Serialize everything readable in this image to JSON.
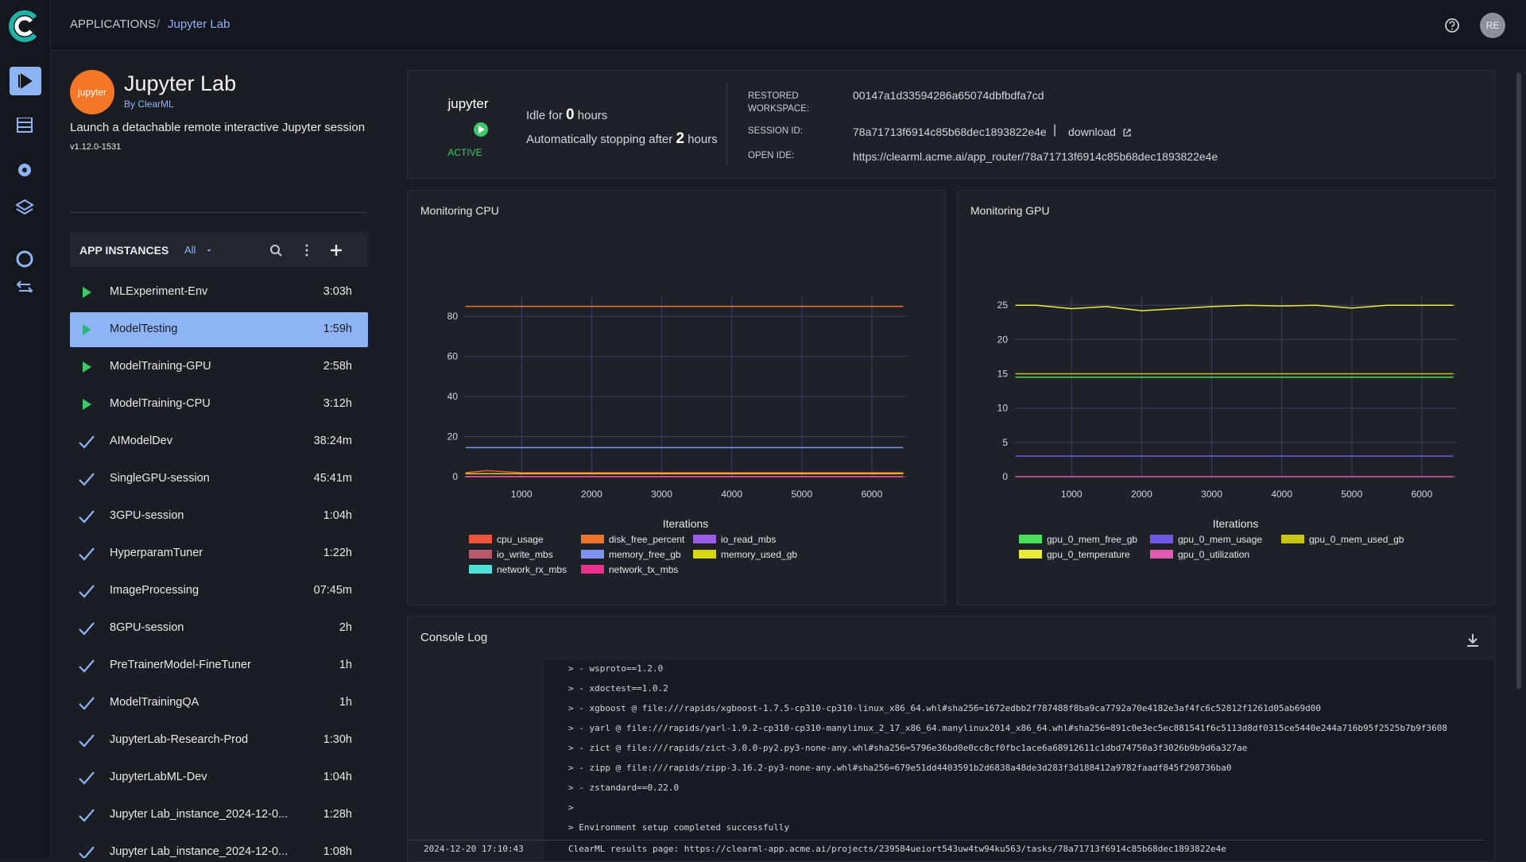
{
  "header": {
    "breadcrumb": [
      "APPLICATIONS",
      "Jupyter Lab"
    ],
    "avatar": "RE"
  },
  "app": {
    "logo_text": "jupyter",
    "title": "Jupyter Lab",
    "by": "By ClearML",
    "description": "Launch a detachable remote interactive Jupyter session",
    "version": "v1.12.0-1531"
  },
  "instances": {
    "title": "APP INSTANCES",
    "filter": "All",
    "selected": 1,
    "items": [
      {
        "name": "MLExperiment-Env",
        "time": "3:03h",
        "status": "running"
      },
      {
        "name": "ModelTesting",
        "time": "1:59h",
        "status": "running"
      },
      {
        "name": "ModelTraining-GPU",
        "time": "2:58h",
        "status": "running"
      },
      {
        "name": "ModelTraining-CPU",
        "time": "3:12h",
        "status": "running"
      },
      {
        "name": "AIModelDev",
        "time": "38:24m",
        "status": "completed"
      },
      {
        "name": "SingleGPU-session",
        "time": "45:41m",
        "status": "completed"
      },
      {
        "name": "3GPU-session",
        "time": "1:04h",
        "status": "completed"
      },
      {
        "name": "HyperparamTuner",
        "time": "1:22h",
        "status": "completed"
      },
      {
        "name": "ImageProcessing",
        "time": "07:45m",
        "status": "completed"
      },
      {
        "name": "8GPU-session",
        "time": "2h",
        "status": "completed"
      },
      {
        "name": "PreTrainerModel-FineTuner",
        "time": "1h",
        "status": "completed"
      },
      {
        "name": "ModelTrainingQA",
        "time": "1h",
        "status": "completed"
      },
      {
        "name": "JupyterLab-Research-Prod",
        "time": "1:30h",
        "status": "completed"
      },
      {
        "name": "JupyterLabML-Dev",
        "time": "1:04h",
        "status": "completed"
      },
      {
        "name": "Jupyter Lab_instance_2024-12-0...",
        "time": "1:28h",
        "status": "completed"
      },
      {
        "name": "Jupyter Lab_instance_2024-12-0...",
        "time": "1:08h",
        "status": "completed"
      }
    ]
  },
  "session": {
    "status": "ACTIVE",
    "idle_prefix": "Idle for",
    "idle_hours": "0",
    "idle_suffix": "hours",
    "stop_prefix": "Automatically stopping after",
    "stop_hours": "2",
    "stop_suffix": "hours",
    "fields": [
      {
        "label": "RESTORED WORKSPACE:",
        "value": "00147a1d33594286a65074dbfbdfa7cd"
      },
      {
        "label": "SESSION ID:",
        "value": "78a71713f6914c85b68dec1893822e4e",
        "link": "download"
      },
      {
        "label": "OPEN IDE:",
        "value": "https://clearml.acme.ai/app_router/78a71713f6914c85b68dec1893822e4e"
      }
    ]
  },
  "chart_data": [
    {
      "type": "line",
      "title": "Monitoring CPU",
      "x_label": "Iterations",
      "grid": true,
      "x": [
        200,
        500,
        1000,
        1500,
        2000,
        2500,
        3000,
        3500,
        4000,
        4500,
        5000,
        5500,
        6000,
        6450
      ],
      "xlim": [
        180,
        6500
      ],
      "xticks": [
        1000,
        2000,
        3000,
        4000,
        5000,
        6000
      ],
      "ylim": [
        0,
        90
      ],
      "yticks": [
        0,
        20,
        40,
        60,
        80
      ],
      "series": [
        {
          "name": "cpu_usage",
          "color": "#ef553b",
          "values": [
            2,
            3,
            2,
            2,
            2,
            2,
            2,
            2,
            2,
            2,
            2,
            2,
            2,
            2
          ]
        },
        {
          "name": "disk_free_percent",
          "color": "#f0742a",
          "values": [
            85,
            85,
            85,
            85,
            85,
            85,
            85,
            85,
            85,
            85,
            85,
            85,
            85,
            85
          ]
        },
        {
          "name": "io_read_mbs",
          "color": "#9b5de5",
          "values": [
            0,
            0,
            0,
            0,
            0,
            0,
            0,
            0,
            0,
            0,
            0,
            0,
            0,
            0
          ]
        },
        {
          "name": "io_write_mbs",
          "color": "#b5596b",
          "values": [
            0,
            0,
            0,
            0,
            0,
            0,
            0,
            0,
            0,
            0,
            0,
            0,
            0,
            0
          ]
        },
        {
          "name": "memory_free_gb",
          "color": "#7c93f0",
          "values": [
            14.5,
            14.5,
            14.5,
            14.5,
            14.5,
            14.5,
            14.5,
            14.5,
            14.5,
            14.5,
            14.5,
            14.5,
            14.5,
            14.5
          ]
        },
        {
          "name": "memory_used_gb",
          "color": "#d6d615",
          "values": [
            1.5,
            1.5,
            1.5,
            1.5,
            1.5,
            1.5,
            1.5,
            1.5,
            1.5,
            1.5,
            1.5,
            1.5,
            1.5,
            1.5
          ]
        },
        {
          "name": "network_rx_mbs",
          "color": "#4ee0d8",
          "values": [
            0,
            0,
            0,
            0,
            0,
            0,
            0,
            0,
            0,
            0,
            0,
            0,
            0,
            0
          ]
        },
        {
          "name": "network_tx_mbs",
          "color": "#ee2f8d",
          "values": [
            0,
            0,
            0,
            0,
            0,
            0,
            0,
            0,
            0,
            0,
            0,
            0,
            0,
            0
          ]
        }
      ]
    },
    {
      "type": "line",
      "title": "Monitoring GPU",
      "x_label": "Iterations",
      "grid": true,
      "x": [
        200,
        500,
        1000,
        1500,
        2000,
        2500,
        3000,
        3500,
        4000,
        4500,
        5000,
        5500,
        6000,
        6450
      ],
      "xlim": [
        180,
        6500
      ],
      "xticks": [
        1000,
        2000,
        3000,
        4000,
        5000,
        6000
      ],
      "ylim": [
        0,
        26.3
      ],
      "yticks": [
        0,
        5,
        10,
        15,
        20,
        25
      ],
      "series": [
        {
          "name": "gpu_0_mem_free_gb",
          "color": "#4cdf5c",
          "values": [
            14.5,
            14.5,
            14.5,
            14.5,
            14.5,
            14.5,
            14.5,
            14.5,
            14.5,
            14.5,
            14.5,
            14.5,
            14.5,
            14.5
          ]
        },
        {
          "name": "gpu_0_mem_usage",
          "color": "#6f57e8",
          "values": [
            3,
            3,
            3,
            3,
            3,
            3,
            3,
            3,
            3,
            3,
            3,
            3,
            3,
            3
          ]
        },
        {
          "name": "gpu_0_mem_used_gb",
          "color": "#c7c416",
          "values": [
            15,
            15,
            15,
            15,
            15,
            15,
            15,
            15,
            15,
            15,
            15,
            15,
            15,
            15
          ]
        },
        {
          "name": "gpu_0_temperature",
          "color": "#e8ec3c",
          "values": [
            25,
            25,
            24.5,
            24.8,
            24.2,
            24.5,
            24.8,
            25,
            24.9,
            25,
            24.6,
            25,
            25,
            25
          ]
        },
        {
          "name": "gpu_0_utilization",
          "color": "#e05ab0",
          "values": [
            0,
            0,
            0,
            0,
            0,
            0,
            0,
            0,
            0,
            0,
            0,
            0,
            0,
            0
          ]
        }
      ]
    }
  ],
  "console": {
    "title": "Console Log",
    "lines": [
      "> - wsproto==1.2.0",
      "> - xdoctest==1.0.2",
      "> - xgboost @ file:///rapids/xgboost-1.7.5-cp310-cp310-linux_x86_64.whl#sha256=1672edbb2f787488f8ba9ca7792a70e4182e3af4fc6c52812f1261d05ab69d00",
      "> - yarl @ file:///rapids/yarl-1.9.2-cp310-cp310-manylinux_2_17_x86_64.manylinux2014_x86_64.whl#sha256=891c0e3ec5ec881541f6c5113d8df0315ce5440e244a716b95f2525b7b9f3608",
      "> - zict @ file:///rapids/zict-3.0.0-py2.py3-none-any.whl#sha256=5796e36bd0e0cc8cf0fbc1ace6a68912611c1dbd74750a3f3026b9b9d6a327ae",
      "> - zipp @ file:///rapids/zipp-3.16.2-py3-none-any.whl#sha256=679e51dd4403591b2d6838a48de3d283f3d188412a9782faadf845f298736ba0",
      "> - zstandard==0.22.0",
      ">",
      "> Environment setup completed successfully"
    ],
    "last": {
      "timestamp": "2024-12-20 17:10:43",
      "text": "ClearML results page: https://clearml-app.acme.ai/projects/239584ueiort543uw4tw94ku563/tasks/78a71713f6914c85b68dec1893822e4e"
    }
  }
}
